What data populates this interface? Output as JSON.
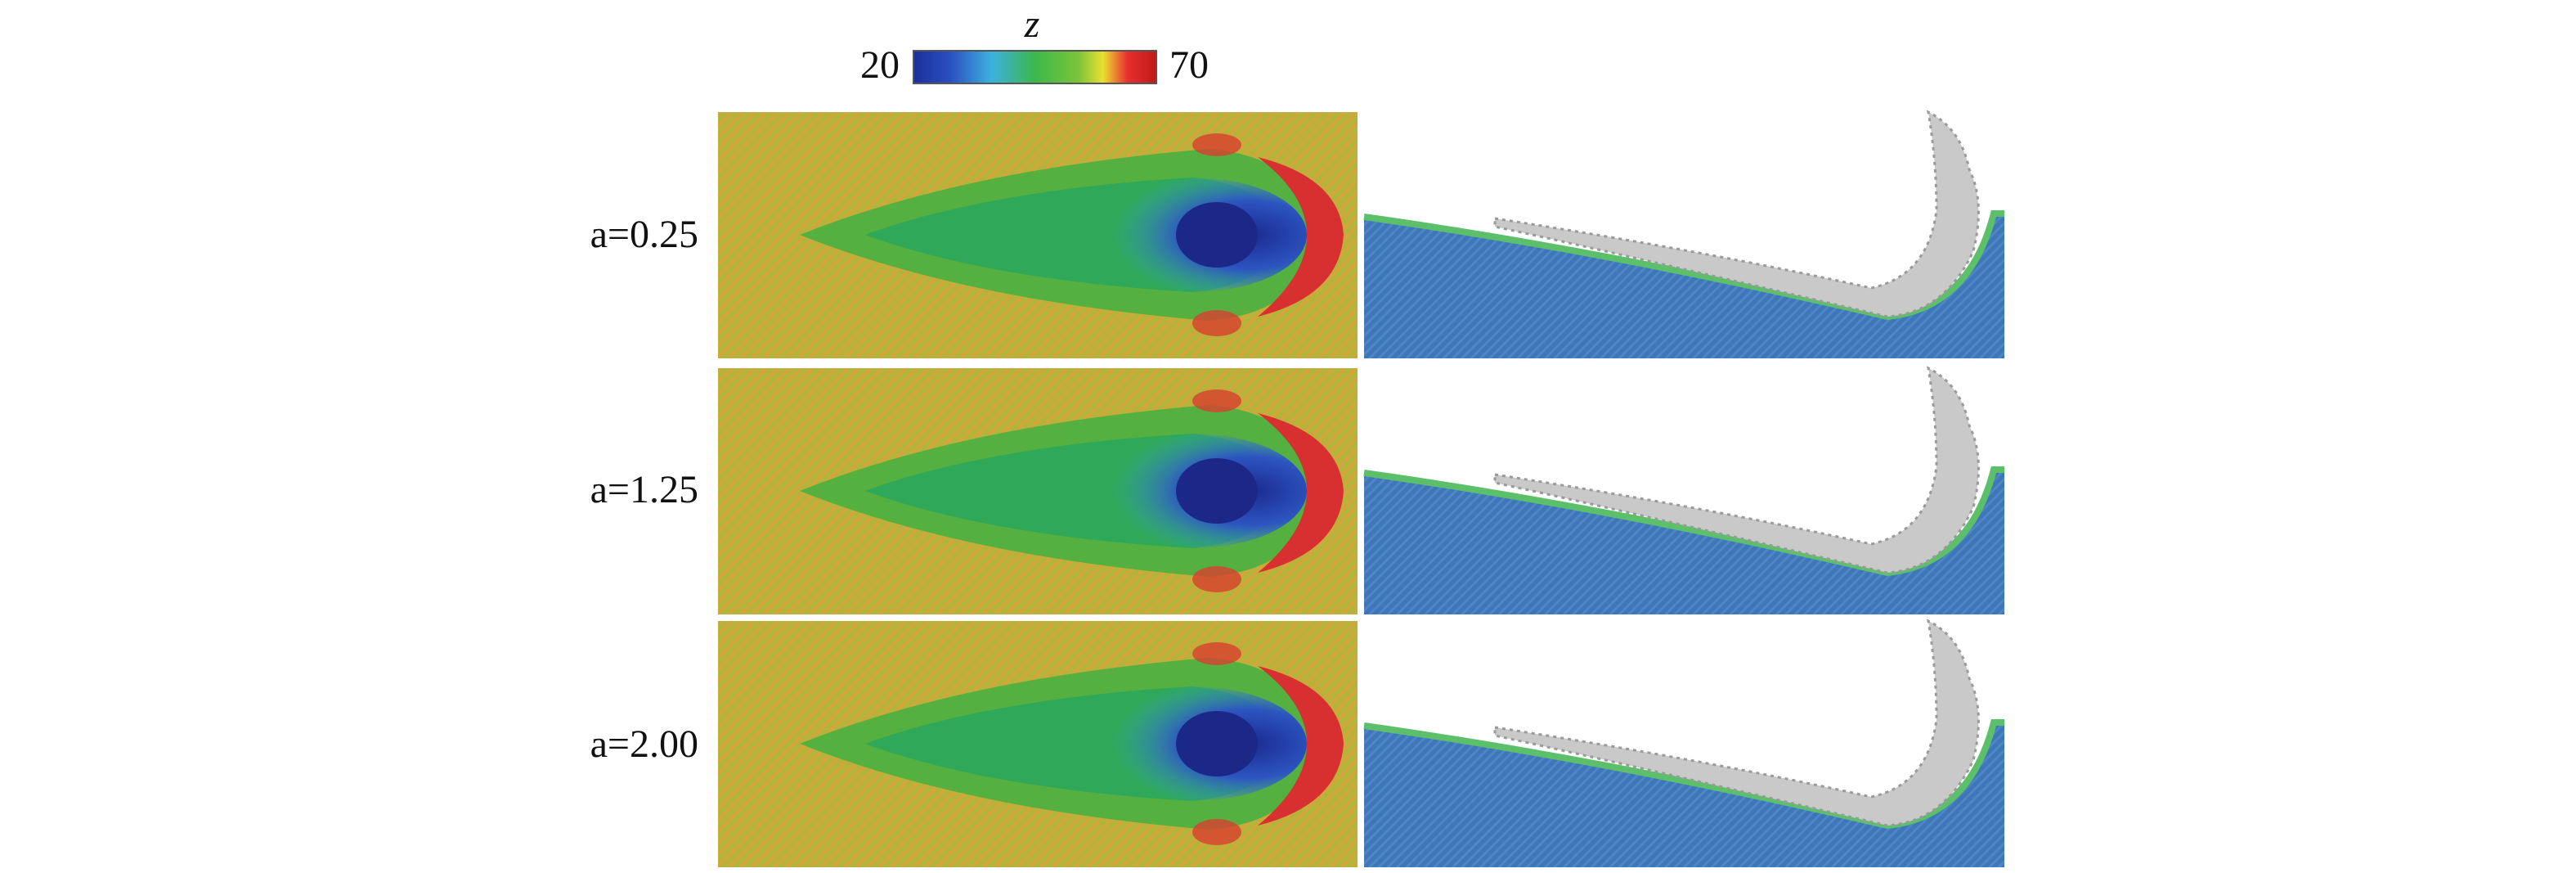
{
  "colorbar": {
    "label": "z",
    "min": 20,
    "max": 70
  },
  "rows": [
    {
      "label": "a=0.25"
    },
    {
      "label": "a=1.25"
    },
    {
      "label": "a=2.00"
    }
  ]
}
